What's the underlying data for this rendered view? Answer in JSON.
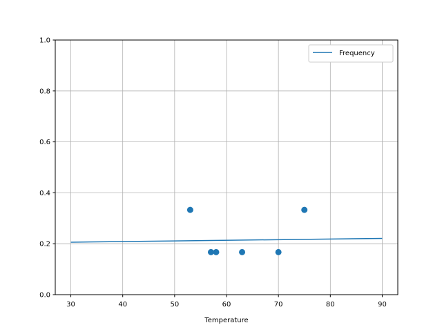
{
  "chart_data": {
    "type": "scatter",
    "title": "",
    "xlabel": "Temperature",
    "ylabel": "",
    "xlim": [
      27,
      93
    ],
    "ylim": [
      0,
      1.0
    ],
    "grid": true,
    "legend_position": "top-right",
    "x_ticks": [
      "30",
      "40",
      "50",
      "60",
      "70",
      "80",
      "90"
    ],
    "y_ticks": [
      "0.0",
      "0.2",
      "0.4",
      "0.6",
      "0.8",
      "1.0"
    ],
    "color": "#1f77b4",
    "scatter_points": {
      "x": [
        53,
        57,
        58,
        63,
        70,
        75
      ],
      "y": [
        0.333,
        0.167,
        0.167,
        0.167,
        0.167,
        0.333
      ]
    },
    "series": [
      {
        "name": "Frequency",
        "type": "line",
        "x": [
          30,
          90
        ],
        "y": [
          0.206,
          0.221
        ]
      }
    ]
  }
}
